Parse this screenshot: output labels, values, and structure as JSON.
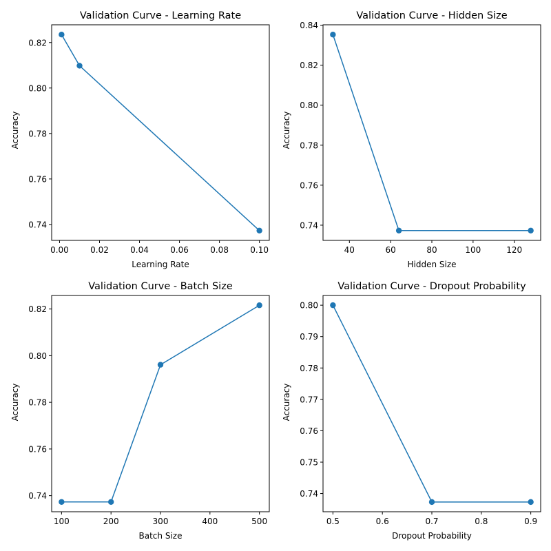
{
  "figure": {
    "background": "#ffffff",
    "line_color": "#1f77b4"
  },
  "chart_data": [
    {
      "type": "line",
      "title": "Validation Curve - Learning Rate",
      "xlabel": "Learning Rate",
      "ylabel": "Accuracy",
      "x": [
        0.001,
        0.01,
        0.1
      ],
      "y": [
        0.8235,
        0.8098,
        0.7373
      ],
      "xlim": [
        -0.00395,
        0.10495
      ],
      "ylim": [
        0.733,
        0.8278
      ],
      "xticks": [
        0.0,
        0.02,
        0.04,
        0.06,
        0.08,
        0.1
      ],
      "xtick_labels": [
        "0.00",
        "0.02",
        "0.04",
        "0.06",
        "0.08",
        "0.10"
      ],
      "yticks": [
        0.74,
        0.76,
        0.78,
        0.8,
        0.82
      ],
      "ytick_labels": [
        "0.74",
        "0.76",
        "0.78",
        "0.80",
        "0.82"
      ],
      "grid": false,
      "marker": "circle"
    },
    {
      "type": "line",
      "title": "Validation Curve - Hidden Size",
      "xlabel": "Hidden Size",
      "ylabel": "Accuracy",
      "x": [
        32,
        64,
        128
      ],
      "y": [
        0.8353,
        0.7373,
        0.7373
      ],
      "xlim": [
        27.2,
        132.8
      ],
      "ylim": [
        0.7324,
        0.8402
      ],
      "xticks": [
        40,
        60,
        80,
        100,
        120
      ],
      "xtick_labels": [
        "40",
        "60",
        "80",
        "100",
        "120"
      ],
      "yticks": [
        0.74,
        0.76,
        0.78,
        0.8,
        0.82,
        0.84
      ],
      "ytick_labels": [
        "0.74",
        "0.76",
        "0.78",
        "0.80",
        "0.82",
        "0.84"
      ],
      "grid": false,
      "marker": "circle"
    },
    {
      "type": "line",
      "title": "Validation Curve - Batch Size",
      "xlabel": "Batch Size",
      "ylabel": "Accuracy",
      "x": [
        100,
        200,
        300,
        500
      ],
      "y": [
        0.7373,
        0.7373,
        0.7961,
        0.8216
      ],
      "xlim": [
        80,
        520
      ],
      "ylim": [
        0.7331,
        0.8258
      ],
      "xticks": [
        100,
        200,
        300,
        400,
        500
      ],
      "xtick_labels": [
        "100",
        "200",
        "300",
        "400",
        "500"
      ],
      "yticks": [
        0.74,
        0.76,
        0.78,
        0.8,
        0.82
      ],
      "ytick_labels": [
        "0.74",
        "0.76",
        "0.78",
        "0.80",
        "0.82"
      ],
      "grid": false,
      "marker": "circle"
    },
    {
      "type": "line",
      "title": "Validation Curve - Dropout Probability",
      "xlabel": "Dropout Probability",
      "ylabel": "Accuracy",
      "x": [
        0.5,
        0.7,
        0.9
      ],
      "y": [
        0.8,
        0.7373,
        0.7373
      ],
      "xlim": [
        0.48,
        0.92
      ],
      "ylim": [
        0.7342,
        0.8031
      ],
      "xticks": [
        0.5,
        0.6,
        0.7,
        0.8,
        0.9
      ],
      "xtick_labels": [
        "0.5",
        "0.6",
        "0.7",
        "0.8",
        "0.9"
      ],
      "yticks": [
        0.74,
        0.75,
        0.76,
        0.77,
        0.78,
        0.79,
        0.8
      ],
      "ytick_labels": [
        "0.74",
        "0.75",
        "0.76",
        "0.77",
        "0.78",
        "0.79",
        "0.80"
      ],
      "grid": false,
      "marker": "circle"
    }
  ]
}
